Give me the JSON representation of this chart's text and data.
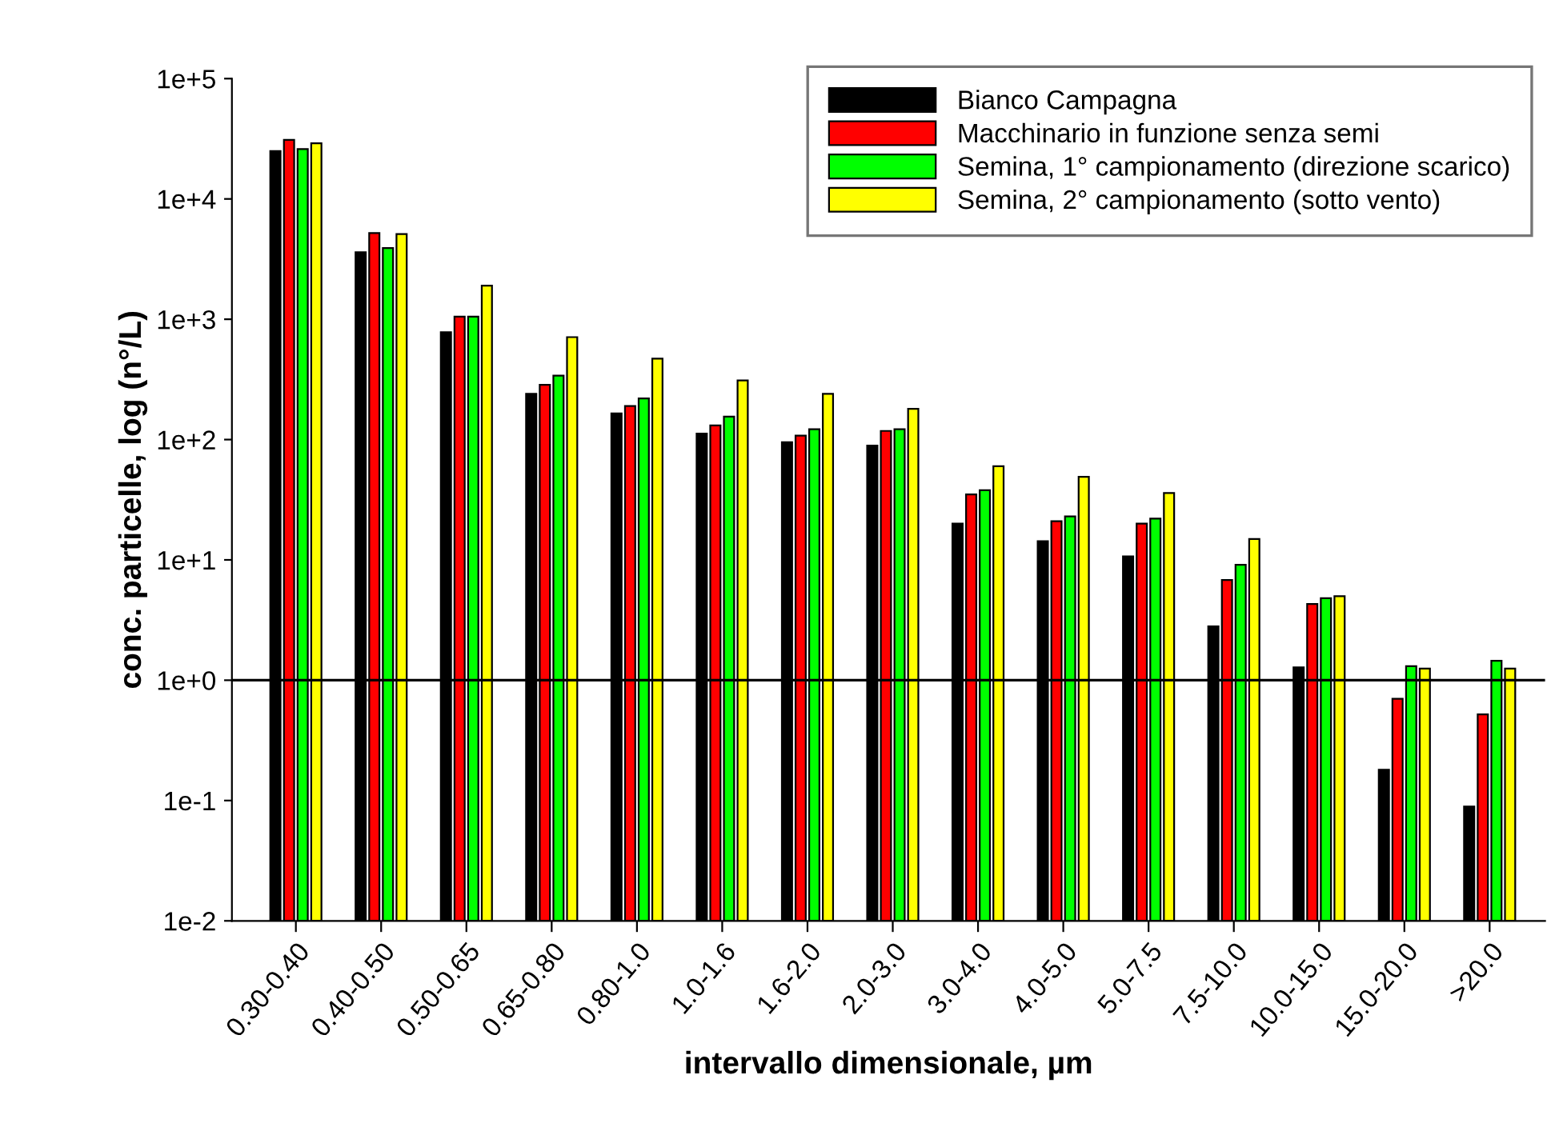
{
  "chart_data": {
    "type": "bar",
    "xlabel": "intervallo dimensionale, µm",
    "ylabel": "conc. particelle, log (n°/L)",
    "categories": [
      "0.30-0.40",
      "0.40-0.50",
      "0.50-0.65",
      "0.65-0.80",
      "0.80-1.0",
      "1.0-1.6",
      "1.6-2.0",
      "2.0-3.0",
      "3.0-4.0",
      "4.0-5.0",
      "5.0-7.5",
      "7.5-10.0",
      "10.0-15.0",
      "15.0-20.0",
      ">20.0"
    ],
    "series": [
      {
        "name": "Bianco Campagna",
        "color": "#000000",
        "values": [
          25000,
          3600,
          780,
          240,
          165,
          112,
          95,
          89,
          20,
          14.3,
          10.7,
          2.8,
          1.28,
          0.18,
          0.089
        ]
      },
      {
        "name": "Macchinario in funzione senza semi",
        "color": "#ff0000",
        "values": [
          31000,
          5200,
          1050,
          285,
          190,
          131,
          108,
          118,
          35,
          21,
          20,
          6.8,
          4.3,
          0.7,
          0.52
        ]
      },
      {
        "name": "Semina, 1° campionamento (direzione scarico)",
        "color": "#00ff00",
        "values": [
          26000,
          3900,
          1050,
          340,
          220,
          155,
          122,
          122,
          38,
          23,
          22,
          9.1,
          4.8,
          1.31,
          1.45
        ]
      },
      {
        "name": "Semina, 2° campionamento (sotto vento)",
        "color": "#ffff00",
        "values": [
          29000,
          5100,
          1900,
          710,
          470,
          310,
          240,
          180,
          60,
          49,
          36,
          14.9,
          5.0,
          1.25,
          1.25
        ]
      }
    ],
    "log": "y",
    "ylim": [
      0.01,
      100000
    ],
    "yticks": [
      {
        "value": 0.01,
        "label": "1e-2"
      },
      {
        "value": 0.1,
        "label": "1e-1"
      },
      {
        "value": 1,
        "label": "1e+0"
      },
      {
        "value": 10,
        "label": "1e+1"
      },
      {
        "value": 100,
        "label": "1e+2"
      },
      {
        "value": 1000,
        "label": "1e+3"
      },
      {
        "value": 10000,
        "label": "1e+4"
      },
      {
        "value": 100000,
        "label": "1e+5"
      }
    ],
    "ref_lines": [
      {
        "axis": "y",
        "value": 1,
        "color": "#000000"
      }
    ],
    "grid": false,
    "legend": "top right"
  }
}
